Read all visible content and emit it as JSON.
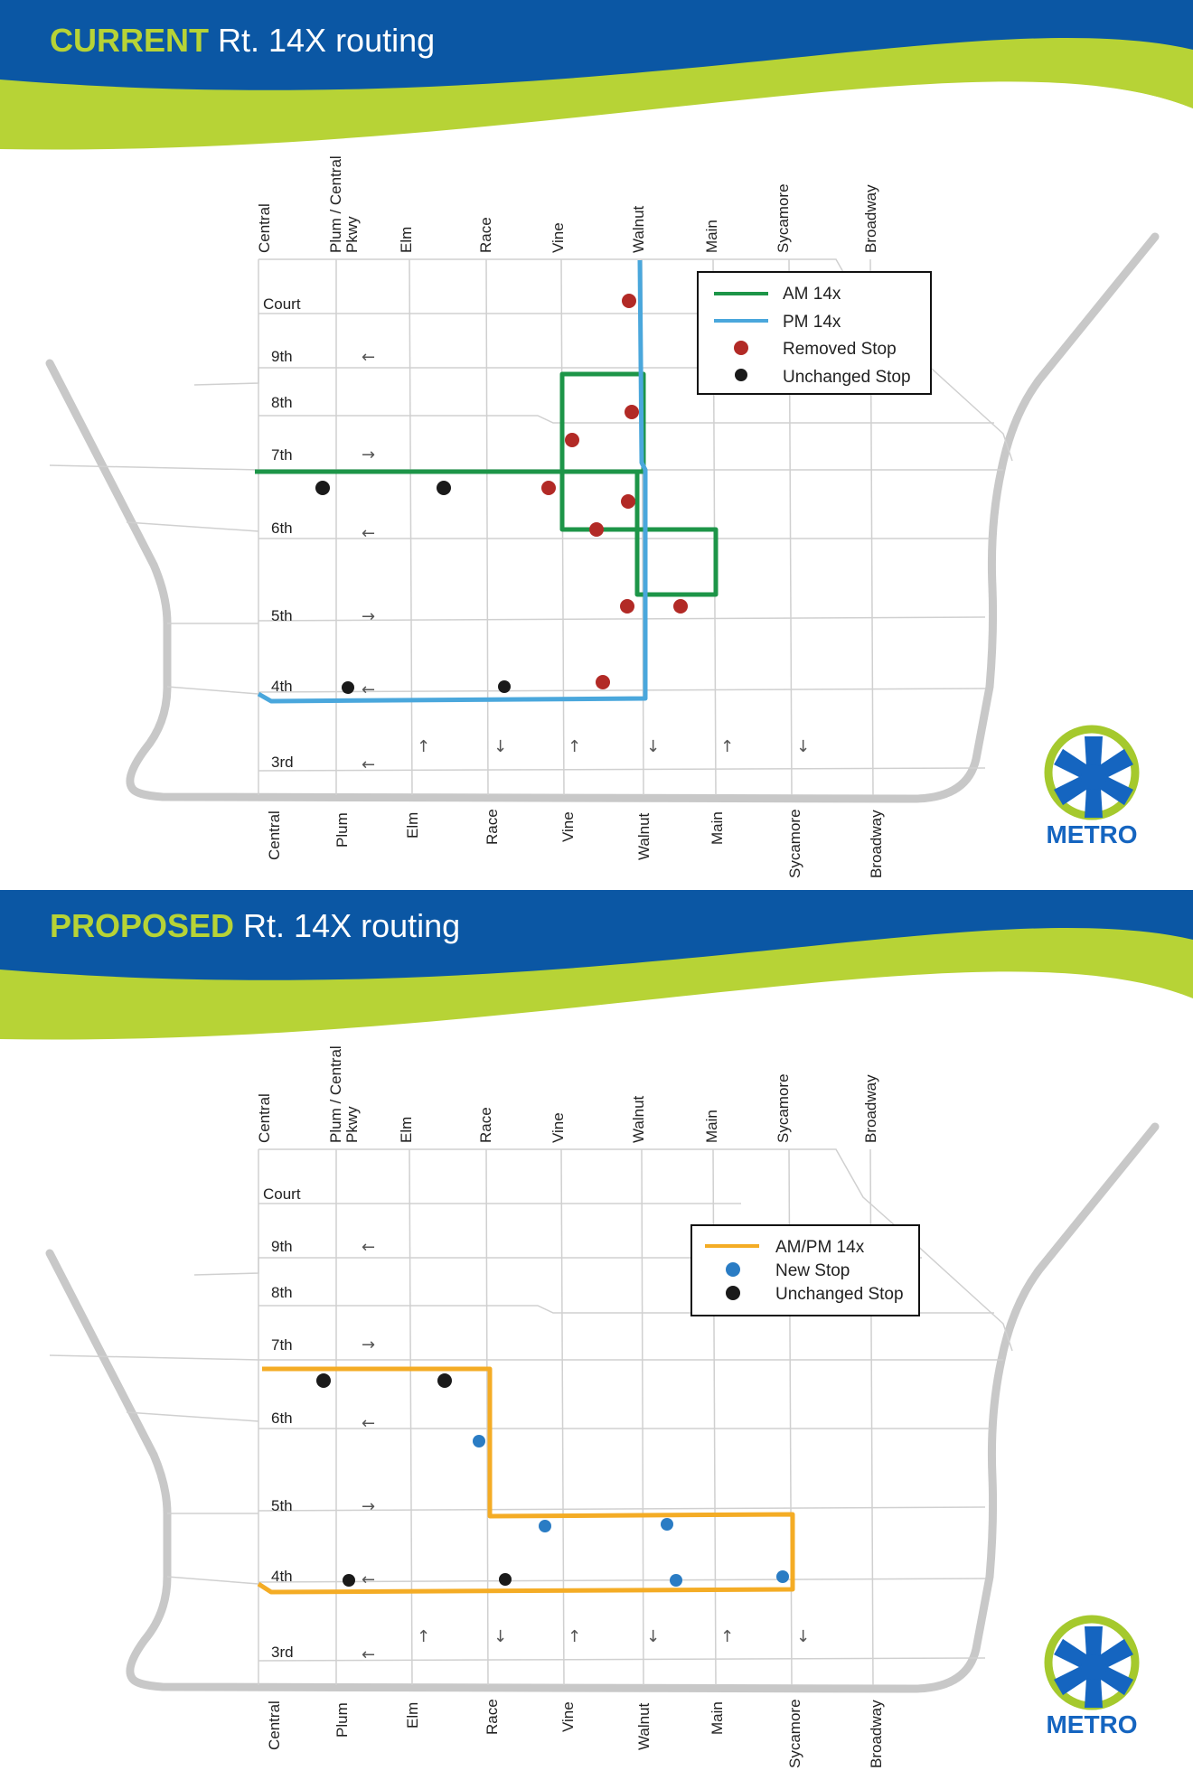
{
  "colors": {
    "banner_blue": "#0b57a4",
    "banner_green": "#b7d336",
    "heading_accent": "#b7d336",
    "street": "#d0d0d0",
    "outer_road": "#c8c8c8",
    "am_route": "#1d9548",
    "pm_route": "#4aa7dc",
    "proposed_route": "#f4ac25",
    "removed_stop": "#b22a26",
    "unchanged_stop": "#1a1a1a",
    "new_stop": "#2a7cc4",
    "logo_blue": "#1565c0",
    "logo_green": "#a5c92d"
  },
  "current": {
    "heading_prefix": "CURRENT",
    "heading_rest": " Rt. 14X routing",
    "top_streets": [
      "Central",
      "Plum / Central",
      "Pkwy",
      "Elm",
      "Race",
      "Vine",
      "Walnut",
      "Main",
      "Sycamore",
      "Broadway"
    ],
    "cross_streets": [
      "Court",
      "9th",
      "8th",
      "7th",
      "6th",
      "5th",
      "4th",
      "3rd"
    ],
    "bottom_streets": [
      "Central",
      "Plum",
      "Elm",
      "Race",
      "Vine",
      "Walnut",
      "Main",
      "Sycamore",
      "Broadway"
    ],
    "legend": [
      {
        "label": "AM 14x",
        "symbol": "line",
        "color": "#1d9548"
      },
      {
        "label": "PM 14x",
        "symbol": "line",
        "color": "#4aa7dc"
      },
      {
        "label": "Removed Stop",
        "symbol": "dot",
        "color": "#b22a26"
      },
      {
        "label": "Unchanged Stop",
        "symbol": "dot",
        "color": "#1a1a1a"
      }
    ]
  },
  "proposed": {
    "heading_prefix": "PROPOSED",
    "heading_rest": " Rt. 14X routing",
    "top_streets": [
      "Central",
      "Plum / Central",
      "Pkwy",
      "Elm",
      "Race",
      "Vine",
      "Walnut",
      "Main",
      "Sycamore",
      "Broadway"
    ],
    "cross_streets": [
      "Court",
      "9th",
      "8th",
      "7th",
      "6th",
      "5th",
      "4th",
      "3rd"
    ],
    "bottom_streets": [
      "Central",
      "Plum",
      "Elm",
      "Race",
      "Vine",
      "Walnut",
      "Main",
      "Sycamore",
      "Broadway"
    ],
    "legend": [
      {
        "label": "AM/PM 14x",
        "symbol": "line",
        "color": "#f4ac25"
      },
      {
        "label": "New Stop",
        "symbol": "dot",
        "color": "#2a7cc4"
      },
      {
        "label": "Unchanged Stop",
        "symbol": "dot",
        "color": "#1a1a1a"
      }
    ]
  },
  "logo": {
    "text": "METRO",
    "icon": "metro-asterisk-logo-icon"
  },
  "arrows": {
    "left": "←",
    "right": "→",
    "up": "↑",
    "down": "↓"
  }
}
